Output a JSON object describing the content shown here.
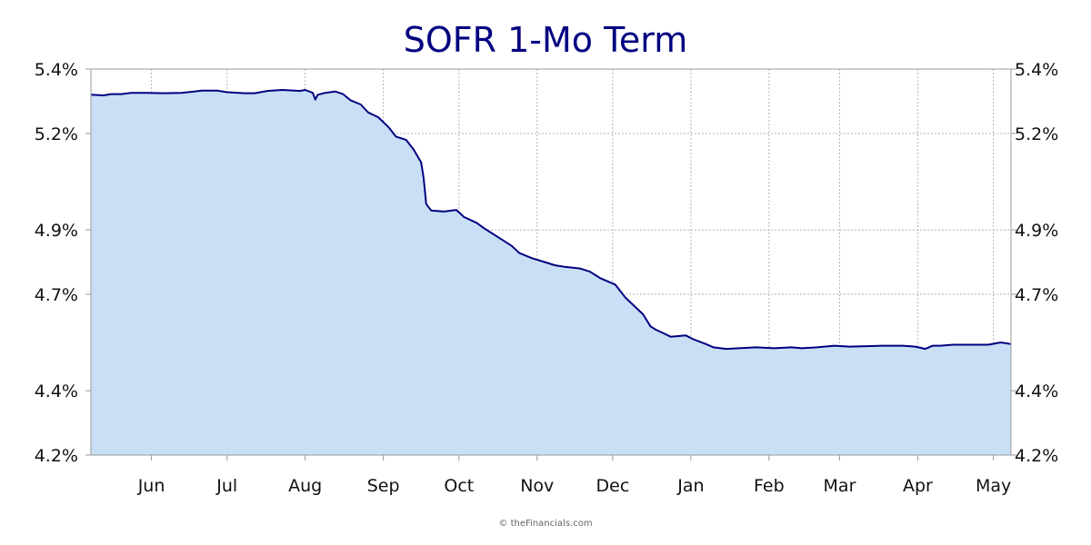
{
  "chart_data": {
    "type": "area",
    "title": "SOFR 1-Mo Term",
    "xlabel": "",
    "ylabel": "",
    "credit": "© theFinancials.com",
    "colors": {
      "line": "#000080",
      "fill": "#c9dff5",
      "grid": "#b5b5b5",
      "axis": "#999999"
    },
    "grid": true,
    "y_axes": "left and right",
    "ylim": [
      4.2,
      5.4
    ],
    "y_ticks": [
      4.2,
      4.4,
      4.7,
      4.9,
      5.2,
      5.4
    ],
    "y_tick_labels": [
      "4.2%",
      "4.4%",
      "4.7%",
      "4.9%",
      "5.2%",
      "5.4%"
    ],
    "x_range": [
      "2024-05-08",
      "2025-05-08"
    ],
    "x_ticks": [
      {
        "label": "Jun",
        "date": "2024-06-01"
      },
      {
        "label": "Jul",
        "date": "2024-07-01"
      },
      {
        "label": "Aug",
        "date": "2024-08-01"
      },
      {
        "label": "Sep",
        "date": "2024-09-01"
      },
      {
        "label": "Oct",
        "date": "2024-10-01"
      },
      {
        "label": "Nov",
        "date": "2024-11-01"
      },
      {
        "label": "Dec",
        "date": "2024-12-01"
      },
      {
        "label": "Jan",
        "date": "2025-01-01"
      },
      {
        "label": "Feb",
        "date": "2025-02-01"
      },
      {
        "label": "Mar",
        "date": "2025-03-01"
      },
      {
        "label": "Apr",
        "date": "2025-04-01"
      },
      {
        "label": "May",
        "date": "2025-05-01"
      }
    ],
    "series": [
      {
        "points": [
          [
            "2024-05-08",
            5.32
          ],
          [
            "2024-05-13",
            5.318
          ],
          [
            "2024-05-16",
            5.322
          ],
          [
            "2024-05-20",
            5.322
          ],
          [
            "2024-05-24",
            5.326
          ],
          [
            "2024-05-30",
            5.326
          ],
          [
            "2024-06-06",
            5.325
          ],
          [
            "2024-06-13",
            5.326
          ],
          [
            "2024-06-18",
            5.33
          ],
          [
            "2024-06-21",
            5.333
          ],
          [
            "2024-06-27",
            5.333
          ],
          [
            "2024-07-01",
            5.328
          ],
          [
            "2024-07-08",
            5.325
          ],
          [
            "2024-07-12",
            5.325
          ],
          [
            "2024-07-17",
            5.332
          ],
          [
            "2024-07-23",
            5.335
          ],
          [
            "2024-07-30",
            5.332
          ],
          [
            "2024-08-01",
            5.335
          ],
          [
            "2024-08-04",
            5.326
          ],
          [
            "2024-08-05",
            5.305
          ],
          [
            "2024-08-06",
            5.32
          ],
          [
            "2024-08-09",
            5.326
          ],
          [
            "2024-08-13",
            5.33
          ],
          [
            "2024-08-16",
            5.322
          ],
          [
            "2024-08-19",
            5.303
          ],
          [
            "2024-08-23",
            5.29
          ],
          [
            "2024-08-26",
            5.265
          ],
          [
            "2024-08-30",
            5.25
          ],
          [
            "2024-09-03",
            5.22
          ],
          [
            "2024-09-06",
            5.19
          ],
          [
            "2024-09-10",
            5.18
          ],
          [
            "2024-09-13",
            5.15
          ],
          [
            "2024-09-16",
            5.11
          ],
          [
            "2024-09-17",
            5.06
          ],
          [
            "2024-09-18",
            4.98
          ],
          [
            "2024-09-20",
            4.96
          ],
          [
            "2024-09-25",
            4.957
          ],
          [
            "2024-09-30",
            4.962
          ],
          [
            "2024-10-03",
            4.94
          ],
          [
            "2024-10-08",
            4.922
          ],
          [
            "2024-10-11",
            4.905
          ],
          [
            "2024-10-14",
            4.89
          ],
          [
            "2024-10-18",
            4.87
          ],
          [
            "2024-10-22",
            4.85
          ],
          [
            "2024-10-25",
            4.828
          ],
          [
            "2024-10-30",
            4.812
          ],
          [
            "2024-11-04",
            4.8
          ],
          [
            "2024-11-08",
            4.79
          ],
          [
            "2024-11-12",
            4.785
          ],
          [
            "2024-11-18",
            4.78
          ],
          [
            "2024-11-22",
            4.77
          ],
          [
            "2024-11-26",
            4.75
          ],
          [
            "2024-12-02",
            4.73
          ],
          [
            "2024-12-06",
            4.69
          ],
          [
            "2024-12-10",
            4.66
          ],
          [
            "2024-12-13",
            4.638
          ],
          [
            "2024-12-16",
            4.6
          ],
          [
            "2024-12-18",
            4.59
          ],
          [
            "2024-12-20",
            4.583
          ],
          [
            "2024-12-24",
            4.568
          ],
          [
            "2024-12-30",
            4.572
          ],
          [
            "2025-01-02",
            4.56
          ],
          [
            "2025-01-07",
            4.545
          ],
          [
            "2025-01-10",
            4.535
          ],
          [
            "2025-01-15",
            4.53
          ],
          [
            "2025-01-20",
            4.532
          ],
          [
            "2025-01-27",
            4.535
          ],
          [
            "2025-02-03",
            4.532
          ],
          [
            "2025-02-10",
            4.535
          ],
          [
            "2025-02-14",
            4.532
          ],
          [
            "2025-02-20",
            4.535
          ],
          [
            "2025-02-27",
            4.54
          ],
          [
            "2025-03-05",
            4.537
          ],
          [
            "2025-03-10",
            4.538
          ],
          [
            "2025-03-18",
            4.54
          ],
          [
            "2025-03-26",
            4.54
          ],
          [
            "2025-03-31",
            4.537
          ],
          [
            "2025-04-04",
            4.53
          ],
          [
            "2025-04-07",
            4.54
          ],
          [
            "2025-04-10",
            4.54
          ],
          [
            "2025-04-15",
            4.543
          ],
          [
            "2025-04-22",
            4.543
          ],
          [
            "2025-04-29",
            4.543
          ],
          [
            "2025-05-04",
            4.55
          ],
          [
            "2025-05-08",
            4.545
          ]
        ]
      }
    ]
  }
}
